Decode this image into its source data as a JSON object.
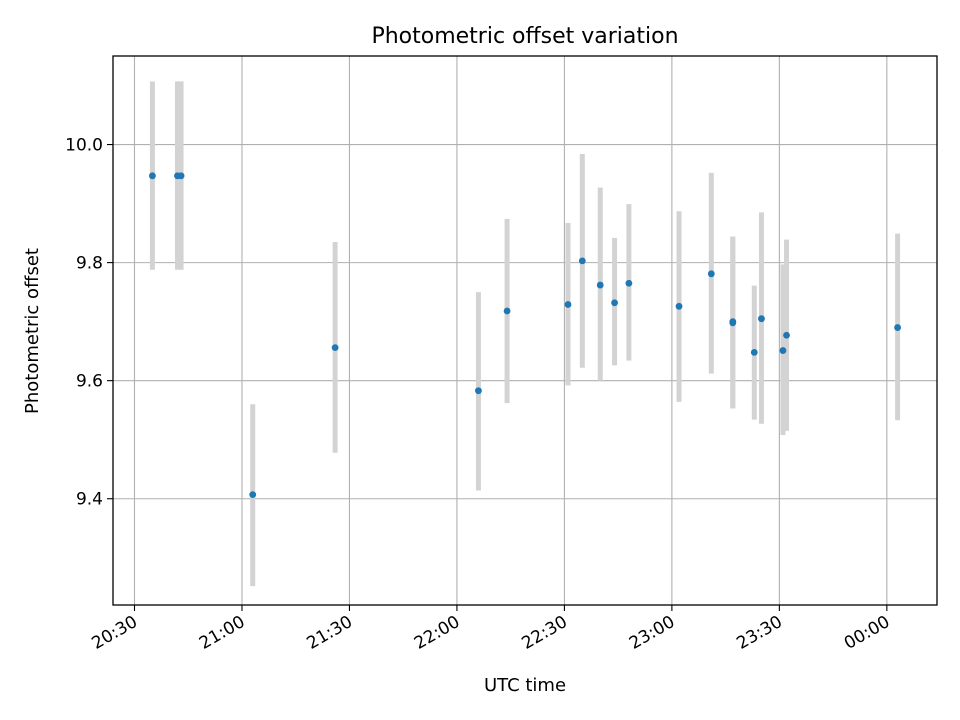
{
  "chart_data": {
    "type": "scatter",
    "title": "Photometric offset variation",
    "xlabel": "UTC time",
    "ylabel": "Photometric offset",
    "x_unit": "UTC time (HH:MM), crossing midnight",
    "xlim": [
      "20:24",
      "00:14"
    ],
    "ylim": [
      9.22,
      10.15
    ],
    "xticks": [
      "20:30",
      "21:00",
      "21:30",
      "22:00",
      "22:30",
      "23:00",
      "23:30",
      "00:00"
    ],
    "yticks": [
      9.4,
      9.6,
      9.8,
      10.0
    ],
    "grid": true,
    "legend": "none",
    "colors": {
      "point": "#1f77b4",
      "errorbar": "#d3d3d3",
      "grid": "#b0b0b0"
    },
    "points": [
      {
        "x": "20:35",
        "y": 9.947,
        "ylo": 9.788,
        "yhi": 10.107
      },
      {
        "x": "20:42",
        "y": 9.947,
        "ylo": 9.788,
        "yhi": 10.107
      },
      {
        "x": "20:43",
        "y": 9.947,
        "ylo": 9.788,
        "yhi": 10.107
      },
      {
        "x": "21:03",
        "y": 9.407,
        "ylo": 9.252,
        "yhi": 9.56
      },
      {
        "x": "21:26",
        "y": 9.656,
        "ylo": 9.478,
        "yhi": 9.835
      },
      {
        "x": "22:06",
        "y": 9.583,
        "ylo": 9.414,
        "yhi": 9.75
      },
      {
        "x": "22:14",
        "y": 9.718,
        "ylo": 9.562,
        "yhi": 9.874
      },
      {
        "x": "22:31",
        "y": 9.729,
        "ylo": 9.592,
        "yhi": 9.867
      },
      {
        "x": "22:35",
        "y": 9.803,
        "ylo": 9.622,
        "yhi": 9.984
      },
      {
        "x": "22:40",
        "y": 9.762,
        "ylo": 9.6,
        "yhi": 9.927
      },
      {
        "x": "22:44",
        "y": 9.732,
        "ylo": 9.626,
        "yhi": 9.842
      },
      {
        "x": "22:48",
        "y": 9.765,
        "ylo": 9.634,
        "yhi": 9.899
      },
      {
        "x": "23:02",
        "y": 9.726,
        "ylo": 9.564,
        "yhi": 9.887
      },
      {
        "x": "23:11",
        "y": 9.781,
        "ylo": 9.612,
        "yhi": 9.952
      },
      {
        "x": "23:17",
        "y": 9.7,
        "ylo": 9.553,
        "yhi": 9.844
      },
      {
        "x": "23:17",
        "y": 9.698,
        "ylo": 9.553,
        "yhi": 9.844
      },
      {
        "x": "23:23",
        "y": 9.648,
        "ylo": 9.534,
        "yhi": 9.761
      },
      {
        "x": "23:25",
        "y": 9.705,
        "ylo": 9.527,
        "yhi": 9.885
      },
      {
        "x": "23:31",
        "y": 9.651,
        "ylo": 9.508,
        "yhi": 9.797
      },
      {
        "x": "23:32",
        "y": 9.677,
        "ylo": 9.515,
        "yhi": 9.839
      },
      {
        "x": "00:03",
        "y": 9.69,
        "ylo": 9.533,
        "yhi": 9.849
      }
    ]
  }
}
